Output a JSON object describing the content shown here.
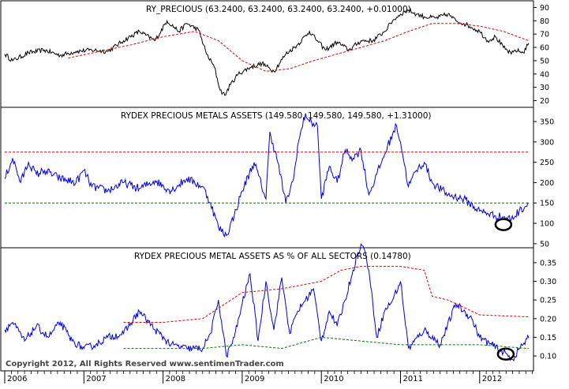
{
  "chart_data": [
    {
      "type": "line",
      "title": "RY_PRECIOUS (63.2400, 63.2400, 63.2400, 63.2400, +0.01000)",
      "ylim": [
        15,
        95
      ],
      "y_ticks": [
        "90",
        "80",
        "70",
        "60",
        "50",
        "40",
        "30",
        "20"
      ],
      "grid": false,
      "series": [
        {
          "color": "#000000",
          "x": [
            2006.0,
            2006.1,
            2006.3,
            2006.5,
            2006.7,
            2006.9,
            2007.1,
            2007.3,
            2007.5,
            2007.7,
            2007.9,
            2008.05,
            2008.2,
            2008.3,
            2008.45,
            2008.55,
            2008.65,
            2008.72,
            2008.78,
            2008.85,
            2008.95,
            2009.1,
            2009.25,
            2009.4,
            2009.55,
            2009.7,
            2009.85,
            2009.95,
            2010.05,
            2010.2,
            2010.35,
            2010.5,
            2010.65,
            2010.8,
            2010.9,
            2011.0,
            2011.1,
            2011.2,
            2011.3,
            2011.45,
            2011.6,
            2011.7,
            2011.8,
            2011.9,
            2012.0,
            2012.1,
            2012.2,
            2012.3,
            2012.4,
            2012.45,
            2012.55,
            2012.62
          ],
          "values": [
            55,
            50,
            56,
            58,
            54,
            57,
            58,
            57,
            65,
            72,
            65,
            80,
            72,
            78,
            73,
            55,
            45,
            28,
            24,
            32,
            40,
            45,
            48,
            42,
            55,
            62,
            72,
            65,
            58,
            64,
            58,
            65,
            65,
            72,
            80,
            85,
            88,
            85,
            83,
            82,
            85,
            80,
            78,
            75,
            72,
            65,
            68,
            60,
            55,
            58,
            56,
            63.24
          ]
        },
        {
          "color": "#dd0000",
          "dashed": true,
          "x": [
            2006.8,
            2007.2,
            2007.6,
            2008.0,
            2008.4,
            2008.7,
            2009.0,
            2009.3,
            2009.6,
            2009.9,
            2010.2,
            2010.5,
            2010.8,
            2011.1,
            2011.4,
            2011.7,
            2012.0,
            2012.3,
            2012.62
          ],
          "values": [
            52,
            57,
            62,
            68,
            72,
            65,
            50,
            42,
            44,
            50,
            55,
            60,
            65,
            72,
            78,
            78,
            76,
            72,
            65
          ]
        }
      ]
    },
    {
      "type": "line",
      "title": "RYDEX PRECIOUS METALS ASSETS (149.580, 149.580, 149.580, +1.31000)",
      "ylim": [
        40,
        385
      ],
      "y_ticks": [
        "350",
        "300",
        "250",
        "200",
        "150",
        "100",
        "50"
      ],
      "grid": false,
      "series": [
        {
          "color": "#0000dd",
          "x": [
            2006.0,
            2006.1,
            2006.2,
            2006.3,
            2006.4,
            2006.5,
            2006.7,
            2006.9,
            2007.0,
            2007.1,
            2007.3,
            2007.5,
            2007.7,
            2007.9,
            2008.1,
            2008.3,
            2008.4,
            2008.5,
            2008.6,
            2008.7,
            2008.8,
            2008.9,
            2009.0,
            2009.15,
            2009.3,
            2009.35,
            2009.45,
            2009.55,
            2009.65,
            2009.7,
            2009.8,
            2009.85,
            2009.95,
            2010.0,
            2010.1,
            2010.2,
            2010.3,
            2010.4,
            2010.5,
            2010.6,
            2010.7,
            2010.8,
            2010.9,
            2010.95,
            2011.0,
            2011.1,
            2011.2,
            2011.3,
            2011.4,
            2011.6,
            2011.8,
            2012.0,
            2012.1,
            2012.2,
            2012.3,
            2012.4,
            2012.5,
            2012.62
          ],
          "values": [
            210,
            260,
            200,
            250,
            220,
            230,
            210,
            200,
            230,
            190,
            180,
            200,
            185,
            205,
            180,
            210,
            200,
            190,
            150,
            90,
            70,
            120,
            180,
            250,
            160,
            325,
            250,
            150,
            210,
            290,
            370,
            350,
            340,
            160,
            240,
            200,
            280,
            260,
            280,
            170,
            220,
            270,
            320,
            340,
            300,
            190,
            230,
            250,
            200,
            170,
            160,
            130,
            125,
            118,
            115,
            110,
            130,
            149.58
          ]
        },
        {
          "color": "#dd0000",
          "dashed": true,
          "x": [
            2006.0,
            2012.62
          ],
          "values": [
            275,
            275
          ]
        },
        {
          "color": "#007700",
          "dashed": true,
          "x": [
            2006.0,
            2012.62
          ],
          "values": [
            150,
            150
          ]
        }
      ]
    },
    {
      "type": "line",
      "title": "RYDEX PRECIOUS METAL ASSETS AS % OF ALL SECTORS (0.14780)",
      "ylim": [
        0.06,
        0.39
      ],
      "y_ticks": [
        "0.35",
        "0.30",
        "0.25",
        "0.20",
        "0.15",
        "0.10"
      ],
      "grid": false,
      "series": [
        {
          "color": "#0000dd",
          "x": [
            2006.0,
            2006.1,
            2006.25,
            2006.4,
            2006.55,
            2006.7,
            2006.85,
            2007.0,
            2007.15,
            2007.3,
            2007.5,
            2007.7,
            2007.9,
            2008.1,
            2008.3,
            2008.5,
            2008.6,
            2008.7,
            2008.8,
            2008.9,
            2009.0,
            2009.1,
            2009.2,
            2009.3,
            2009.4,
            2009.5,
            2009.6,
            2009.7,
            2009.8,
            2009.9,
            2010.0,
            2010.1,
            2010.2,
            2010.3,
            2010.4,
            2010.5,
            2010.55,
            2010.6,
            2010.7,
            2010.8,
            2010.9,
            2011.0,
            2011.1,
            2011.3,
            2011.5,
            2011.7,
            2011.9,
            2012.0,
            2012.15,
            2012.3,
            2012.42,
            2012.5,
            2012.62
          ],
          "values": [
            0.17,
            0.19,
            0.14,
            0.18,
            0.15,
            0.19,
            0.14,
            0.12,
            0.13,
            0.15,
            0.16,
            0.22,
            0.17,
            0.13,
            0.12,
            0.12,
            0.16,
            0.25,
            0.1,
            0.15,
            0.24,
            0.32,
            0.14,
            0.3,
            0.17,
            0.31,
            0.16,
            0.22,
            0.25,
            0.28,
            0.14,
            0.22,
            0.18,
            0.25,
            0.33,
            0.4,
            0.38,
            0.33,
            0.15,
            0.22,
            0.25,
            0.3,
            0.12,
            0.17,
            0.13,
            0.24,
            0.2,
            0.15,
            0.13,
            0.11,
            0.09,
            0.12,
            0.1478
          ]
        },
        {
          "color": "#dd0000",
          "dashed": true,
          "x": [
            2007.5,
            2008.0,
            2008.5,
            2009.0,
            2009.5,
            2010.0,
            2010.25,
            2010.5,
            2011.0,
            2011.3,
            2011.4,
            2011.6,
            2011.8,
            2012.0,
            2012.62
          ],
          "values": [
            0.19,
            0.19,
            0.2,
            0.27,
            0.28,
            0.3,
            0.33,
            0.34,
            0.34,
            0.33,
            0.26,
            0.25,
            0.23,
            0.21,
            0.205
          ]
        },
        {
          "color": "#007700",
          "dashed": true,
          "x": [
            2007.5,
            2008.0,
            2008.5,
            2009.0,
            2009.5,
            2010.0,
            2010.5,
            2011.0,
            2011.5,
            2012.0,
            2012.62
          ],
          "values": [
            0.12,
            0.12,
            0.12,
            0.13,
            0.12,
            0.15,
            0.14,
            0.13,
            0.13,
            0.13,
            0.12
          ]
        }
      ]
    }
  ],
  "x_axis": {
    "xlim": [
      2005.95,
      2012.68
    ],
    "ticks": [
      {
        "year": 2006,
        "label": "2006"
      },
      {
        "year": 2007,
        "label": "2007"
      },
      {
        "year": 2008,
        "label": "2008"
      },
      {
        "year": 2009,
        "label": "2009"
      },
      {
        "year": 2010,
        "label": "2010"
      },
      {
        "year": 2011,
        "label": "2011"
      },
      {
        "year": 2012,
        "label": "2012"
      }
    ]
  },
  "copyright": "Copyright 2012, All Rights Reserved  www.sentimenTrader.com",
  "annotations": [
    {
      "panel": 1,
      "x": 2012.3,
      "y": 97,
      "shape": "ellipse"
    },
    {
      "panel": 2,
      "x": 2012.33,
      "y": 0.105,
      "shape": "ellipse"
    }
  ]
}
